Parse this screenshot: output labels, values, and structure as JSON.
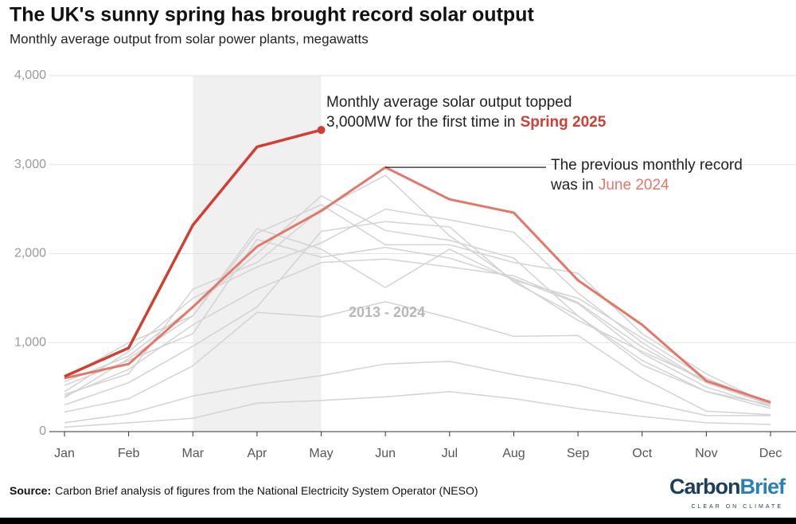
{
  "chart_data": {
    "type": "line",
    "title": "The UK's sunny spring has brought record solar output",
    "subtitle": "Monthly average output from solar power plants, megawatts",
    "categories": [
      "Jan",
      "Feb",
      "Mar",
      "Apr",
      "May",
      "Jun",
      "Jul",
      "Aug",
      "Sep",
      "Oct",
      "Nov",
      "Dec"
    ],
    "ylim": [
      0,
      4000
    ],
    "yticks": [
      0,
      {
        "value": 1000,
        "label": "1,000"
      },
      {
        "value": 2000,
        "label": "2,000"
      },
      {
        "value": 3000,
        "label": "3,000"
      },
      {
        "value": 4000,
        "label": "4,000"
      }
    ],
    "grid": true,
    "shaded": {
      "from": "Mar",
      "to": "May"
    },
    "series": [
      {
        "color": "#d3d3d3",
        "values": [
          50,
          100,
          150,
          320,
          350,
          390,
          450,
          370,
          260,
          170,
          100,
          80
        ]
      },
      {
        "color": "#d3d3d3",
        "values": [
          100,
          200,
          400,
          530,
          630,
          760,
          790,
          640,
          520,
          340,
          180,
          180
        ]
      },
      {
        "color": "#d3d3d3",
        "values": [
          220,
          370,
          740,
          1340,
          1290,
          1460,
          1280,
          1070,
          1080,
          600,
          230,
          190
        ]
      },
      {
        "color": "#d3d3d3",
        "values": [
          300,
          550,
          960,
          1400,
          2250,
          2360,
          2300,
          1680,
          1300,
          800,
          450,
          300
        ]
      },
      {
        "color": "#d3d3d3",
        "values": [
          400,
          700,
          1200,
          1600,
          1900,
          1940,
          1850,
          1750,
          1450,
          950,
          550,
          300
        ]
      },
      {
        "color": "#d3d3d3",
        "values": [
          380,
          820,
          1300,
          2280,
          2050,
          1620,
          2050,
          1700,
          1500,
          1050,
          600,
          300
        ]
      },
      {
        "color": "#d3d3d3",
        "values": [
          450,
          900,
          1500,
          1850,
          2120,
          2500,
          2380,
          2240,
          1560,
          1000,
          550,
          320
        ]
      },
      {
        "color": "#d3d3d3",
        "values": [
          520,
          800,
          1100,
          2160,
          1960,
          2070,
          1950,
          1720,
          1440,
          880,
          500,
          280
        ]
      },
      {
        "color": "#d3d3d3",
        "values": [
          560,
          850,
          1400,
          2000,
          2650,
          2260,
          2150,
          1950,
          1300,
          750,
          450,
          260
        ]
      },
      {
        "color": "#d3d3d3",
        "values": [
          420,
          650,
          1600,
          1900,
          2500,
          2880,
          2200,
          1700,
          1250,
          900,
          580,
          310
        ]
      },
      {
        "color": "#d3d3d3",
        "values": [
          600,
          1000,
          1300,
          2230,
          2550,
          2100,
          2100,
          1900,
          1780,
          1100,
          650,
          300
        ]
      },
      {
        "color": "#e2786a",
        "values": [
          600,
          760,
          1400,
          2080,
          2480,
          2970,
          2610,
          2460,
          1700,
          1200,
          570,
          330
        ]
      },
      {
        "color": "#cf3f33",
        "values": [
          620,
          940,
          2320,
          3200,
          3390,
          null,
          null,
          null,
          null,
          null,
          null,
          null
        ]
      }
    ],
    "annotation_new": {
      "lines": [
        "Monthly average solar output topped",
        "3,000MW for the first time in"
      ],
      "highlight": "Spring 2025"
    },
    "annotation_previous": {
      "lines": [
        "The previous monthly record",
        "was in"
      ],
      "highlight": "June 2024"
    },
    "annotation_range": "2013 - 2024",
    "source_label": "Source:",
    "source": "Carbon Brief analysis of figures from the National Electricity System Operator (NESO)",
    "logo": [
      "Carbon",
      "Brief"
    ],
    "logo_tagline": "CLEAR ON CLIMATE"
  }
}
